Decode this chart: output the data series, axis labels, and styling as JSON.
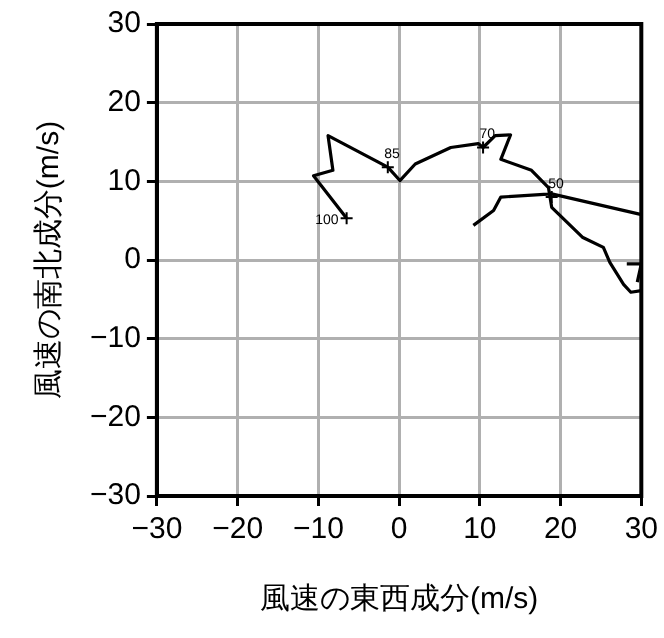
{
  "chart_data": {
    "type": "line",
    "xlabel": "風速の東西成分(m/s)",
    "ylabel": "風速の南北成分(m/s)",
    "xlim": [
      -30,
      30
    ],
    "ylim": [
      -30,
      30
    ],
    "xticks": [
      -30,
      -20,
      -10,
      0,
      10,
      20,
      30
    ],
    "yticks": [
      -30,
      -20,
      -10,
      0,
      10,
      20,
      30
    ],
    "grid": true,
    "marker": "none",
    "line_style": "solid",
    "series": [
      {
        "color": "#000000",
        "x": [
          9.2,
          11.7,
          12.6,
          18.9,
          29.9,
          null,
          28.2,
          30,
          29.5,
          null,
          30,
          28.7,
          27.8,
          26.1,
          25.3,
          22.7,
          18.9,
          18.5,
          16.4,
          12.6,
          13.8,
          11.9,
          10.4,
          9.8,
          6.4,
          2.0,
          0.1,
          -1.4,
          -8.8,
          -8.2,
          -10.6,
          -6.5
        ],
        "values": [
          4.4,
          6.3,
          8.0,
          8.4,
          5.8,
          null,
          -0.5,
          -0.5,
          -2.8,
          null,
          -3.9,
          -4.1,
          -3.1,
          -0.3,
          1.6,
          2.9,
          6.7,
          9.2,
          11.4,
          12.8,
          15.9,
          15.8,
          14.3,
          14.8,
          14.3,
          12.2,
          10.1,
          11.8,
          15.8,
          11.4,
          10.7,
          5.3
        ]
      }
    ],
    "annotations": [
      {
        "text": "100",
        "x": -6.5,
        "y": 5.3
      },
      {
        "text": "85",
        "x": -1.4,
        "y": 11.8
      },
      {
        "text": "70",
        "x": 10.4,
        "y": 14.3
      },
      {
        "text": "50",
        "x": 18.9,
        "y": 8.0
      }
    ]
  }
}
